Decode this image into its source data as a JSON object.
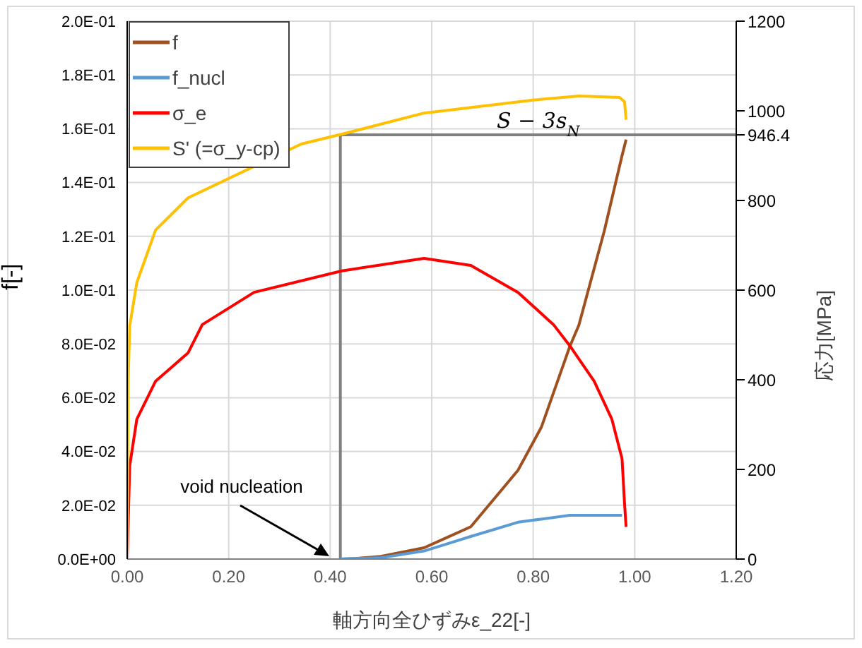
{
  "chart_data": {
    "type": "line",
    "xlabel": "軸方向全ひずみε_22[-]",
    "ylabel": "f[-]",
    "y2label": "応力[MPa]",
    "xlim": [
      0,
      1.2
    ],
    "xticks": [
      {
        "value": 0,
        "label": "0.00"
      },
      {
        "value": 0.2,
        "label": "0.20"
      },
      {
        "value": 0.4,
        "label": "0.40"
      },
      {
        "value": 0.6,
        "label": "0.60"
      },
      {
        "value": 0.8,
        "label": "0.80"
      },
      {
        "value": 1.0,
        "label": "1.00"
      },
      {
        "value": 1.2,
        "label": "1.20"
      }
    ],
    "ylim": [
      0,
      0.2
    ],
    "yticks": [
      {
        "value": 0,
        "label": "0.0E+00"
      },
      {
        "value": 0.02,
        "label": "2.0E-02"
      },
      {
        "value": 0.04,
        "label": "4.0E-02"
      },
      {
        "value": 0.06,
        "label": "6.0E-02"
      },
      {
        "value": 0.08,
        "label": "8.0E-02"
      },
      {
        "value": 0.1,
        "label": "1.0E-01"
      },
      {
        "value": 0.12,
        "label": "1.2E-01"
      },
      {
        "value": 0.14,
        "label": "1.4E-01"
      },
      {
        "value": 0.16,
        "label": "1.6E-01"
      },
      {
        "value": 0.18,
        "label": "1.8E-01"
      },
      {
        "value": 0.2,
        "label": "2.0E-01"
      }
    ],
    "y2lim": [
      0,
      1200
    ],
    "y2ticks": [
      0,
      200,
      400,
      600,
      800,
      946.4,
      1000,
      1200
    ],
    "grid": true,
    "legend": "top left",
    "marker": "none",
    "line_style": "solid",
    "series": [
      {
        "name": "f",
        "color": "#a0501e",
        "x": [
          0.42,
          0.45,
          0.5,
          0.585,
          0.677,
          0.77,
          0.816,
          0.872,
          0.89,
          0.94,
          0.975,
          0.983
        ],
        "values": [
          0,
          0.0002,
          0.001,
          0.0042,
          0.012,
          0.033,
          0.049,
          0.079,
          0.087,
          0.122,
          0.15,
          0.156
        ]
      },
      {
        "name": "f_nucl",
        "color": "#5b9bd5",
        "x": [
          0.42,
          0.5,
          0.585,
          0.677,
          0.77,
          0.872,
          0.975
        ],
        "values": [
          0,
          0.0005,
          0.003,
          0.0084,
          0.0137,
          0.0163,
          0.0163
        ]
      },
      {
        "name": "σ_e",
        "color": "#ff0000",
        "axis": "y2",
        "x": [
          0,
          0.005,
          0.019,
          0.056,
          0.12,
          0.148,
          0.25,
          0.423,
          0.585,
          0.677,
          0.77,
          0.84,
          0.872,
          0.92,
          0.955,
          0.975,
          0.98,
          0.983
        ],
        "values": [
          0,
          208,
          312,
          397,
          460,
          523,
          595,
          643,
          671,
          655,
          595,
          523,
          476,
          397,
          312,
          224,
          123,
          72
        ]
      },
      {
        "name": "S' (=σ_y-cp)",
        "color": "#ffc000",
        "axis": "y2",
        "x": [
          0,
          0.002,
          0.005,
          0.019,
          0.056,
          0.12,
          0.343,
          0.423,
          0.585,
          0.8,
          0.89,
          0.97,
          0.98,
          0.983
        ],
        "values": [
          0,
          400,
          520,
          617,
          734,
          806,
          926,
          948,
          995,
          1024,
          1033,
          1030,
          1020,
          980
        ]
      }
    ],
    "ref_lines": [
      {
        "axis": "x",
        "value": 0.42,
        "color": "#808080"
      },
      {
        "axis": "y2",
        "value": 946.4,
        "label": "S − 3s$_{N}$",
        "color": "#808080"
      }
    ],
    "annotations": [
      "void nucleation"
    ]
  }
}
